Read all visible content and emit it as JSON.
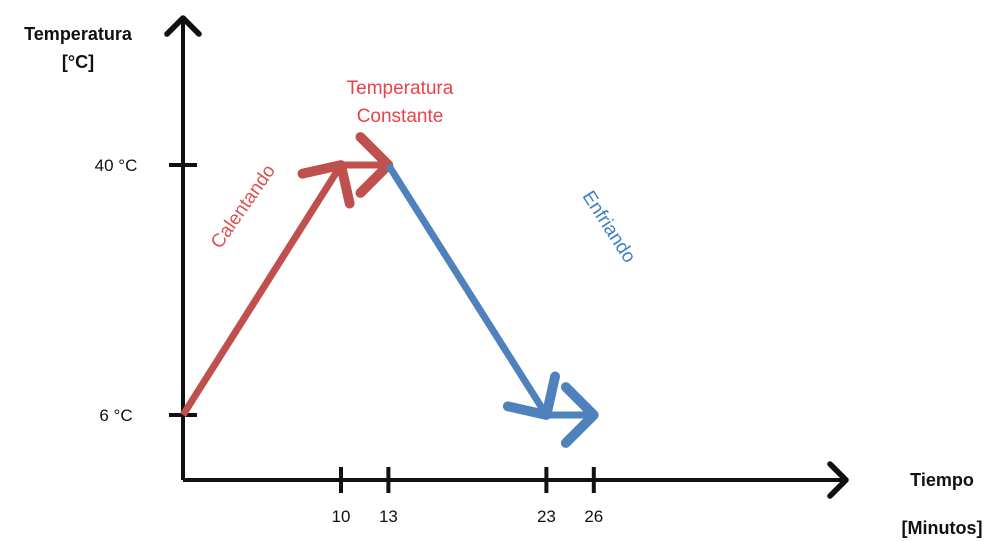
{
  "chart_data": {
    "type": "line",
    "ylabel_lines": [
      "Temperatura",
      "[°C]"
    ],
    "xlabel_lines": [
      "Tiempo",
      "[Minutos]"
    ],
    "x_ticks": [
      {
        "value": 10,
        "label": "10"
      },
      {
        "value": 13,
        "label": "13"
      },
      {
        "value": 23,
        "label": "23"
      },
      {
        "value": 26,
        "label": "26"
      }
    ],
    "y_ticks": [
      {
        "value": 6,
        "label": "6 °C"
      },
      {
        "value": 40,
        "label": "40 °C"
      }
    ],
    "segments": [
      {
        "x": [
          0,
          10
        ],
        "y": [
          6,
          40
        ],
        "color": "#c0504d"
      },
      {
        "x": [
          10,
          13
        ],
        "y": [
          40,
          40
        ],
        "color": "#c0504d"
      },
      {
        "x": [
          13,
          23
        ],
        "y": [
          40,
          6
        ],
        "color": "#4f81bd"
      },
      {
        "x": [
          23,
          26
        ],
        "y": [
          6,
          6
        ],
        "color": "#4f81bd"
      }
    ],
    "annotations": [
      {
        "text": "Calentando",
        "color": "#d9534f"
      },
      {
        "text_lines": [
          "Temperatura",
          "Constante"
        ],
        "color": "#e8434a"
      },
      {
        "text": "Enfriando",
        "color": "#3f7fc6"
      }
    ]
  }
}
